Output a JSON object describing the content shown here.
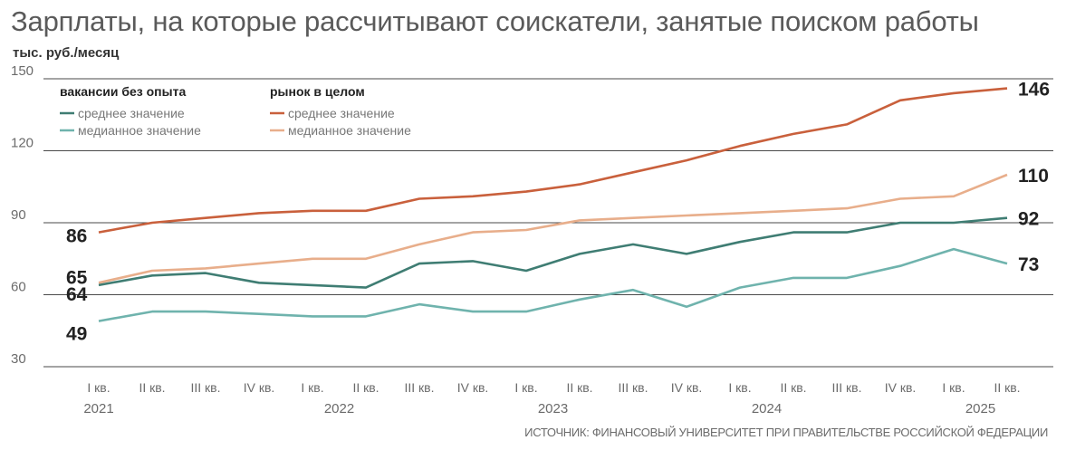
{
  "chart_data": {
    "type": "line",
    "title": "Зарплаты, на которые рассчитывают соискатели, занятые поиском работы",
    "ylabel": "тыс. руб./месяц",
    "ylim": [
      30,
      150
    ],
    "yticks": [
      30,
      60,
      90,
      120,
      150
    ],
    "grid": true,
    "categories": [
      "I кв.",
      "II кв.",
      "III кв.",
      "IV кв.",
      "I кв.",
      "II кв.",
      "III кв.",
      "IV кв.",
      "I кв.",
      "II кв.",
      "III кв.",
      "IV кв.",
      "I кв.",
      "II кв.",
      "III кв.",
      "IV кв.",
      "I кв.",
      "II кв."
    ],
    "years": [
      {
        "label": "2021",
        "index": 0
      },
      {
        "label": "2022",
        "index": 4.5
      },
      {
        "label": "2023",
        "index": 8.5
      },
      {
        "label": "2024",
        "index": 12.5
      },
      {
        "label": "2025",
        "index": 16.5
      }
    ],
    "legend_groups": [
      {
        "heading": "вакансии без опыта",
        "items": [
          {
            "label": "среднее значение",
            "color": "#3f7d73"
          },
          {
            "label": "медианное значение",
            "color": "#6fb3ad"
          }
        ]
      },
      {
        "heading": "рынок в целом",
        "items": [
          {
            "label": "среднее значение",
            "color": "#c9603c"
          },
          {
            "label": "медианное значение",
            "color": "#e8ae8b"
          }
        ]
      }
    ],
    "series": [
      {
        "name": "рынок в целом — среднее значение",
        "color": "#c9603c",
        "values": [
          86,
          90,
          92,
          94,
          95,
          95,
          100,
          101,
          103,
          106,
          111,
          116,
          122,
          127,
          131,
          141,
          144,
          146
        ],
        "start_label": "86",
        "end_label": "146"
      },
      {
        "name": "рынок в целом — медианное значение",
        "color": "#e8ae8b",
        "values": [
          65,
          70,
          71,
          73,
          75,
          75,
          81,
          86,
          87,
          91,
          92,
          93,
          94,
          95,
          96,
          100,
          101,
          110
        ],
        "start_label": "65",
        "end_label": "110"
      },
      {
        "name": "вакансии без опыта — среднее значение",
        "color": "#3f7d73",
        "values": [
          64,
          68,
          69,
          65,
          64,
          63,
          73,
          74,
          70,
          77,
          81,
          77,
          82,
          86,
          86,
          90,
          90,
          92
        ],
        "start_label": "64",
        "end_label": "92"
      },
      {
        "name": "вакансии без опыта — медианное значение",
        "color": "#6fb3ad",
        "values": [
          49,
          53,
          53,
          52,
          51,
          51,
          56,
          53,
          53,
          58,
          62,
          55,
          63,
          67,
          67,
          72,
          79,
          73
        ],
        "start_label": "49",
        "end_label": "73"
      }
    ]
  },
  "source": "ИСТОЧНИК: ФИНАНСОВЫЙ УНИВЕРСИТЕТ ПРИ ПРАВИТЕЛЬСТВЕ РОССИЙСКОЙ ФЕДЕРАЦИИ"
}
